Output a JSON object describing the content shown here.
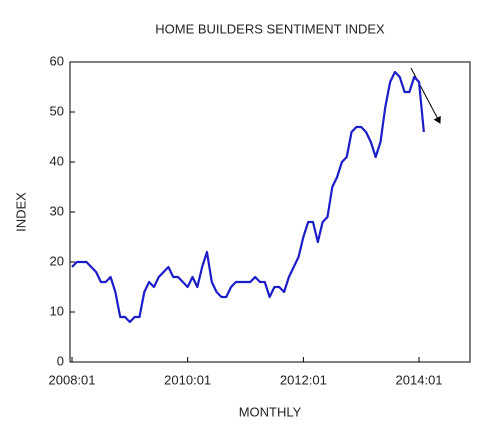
{
  "chart_data": {
    "type": "line",
    "title": "HOME BUILDERS SENTIMENT INDEX",
    "y_label": "INDEX",
    "x_label": "MONTHLY",
    "categories": [
      "2008:01",
      null,
      null,
      null,
      null,
      null,
      null,
      null,
      null,
      null,
      null,
      null,
      null,
      null,
      null,
      null,
      null,
      null,
      null,
      null,
      null,
      null,
      null,
      null,
      "2010:01",
      null,
      null,
      null,
      null,
      null,
      null,
      null,
      null,
      null,
      null,
      null,
      null,
      null,
      null,
      null,
      null,
      null,
      null,
      null,
      null,
      null,
      null,
      null,
      "2012:01",
      null,
      null,
      null,
      null,
      null,
      null,
      null,
      null,
      null,
      null,
      null,
      null,
      null,
      null,
      null,
      null,
      null,
      null,
      null,
      null,
      null,
      null,
      null,
      "2014:01",
      null
    ],
    "values": [
      19,
      20,
      20,
      20,
      19,
      18,
      16,
      16,
      17,
      14,
      9,
      9,
      8,
      9,
      9,
      14,
      16,
      15,
      17,
      18,
      19,
      17,
      17,
      16,
      15,
      17,
      15,
      19,
      22,
      16,
      14,
      13,
      13,
      15,
      16,
      16,
      16,
      16,
      17,
      16,
      16,
      13,
      15,
      15,
      14,
      17,
      19,
      21,
      25,
      28,
      28,
      24,
      28,
      29,
      35,
      37,
      40,
      41,
      46,
      47,
      47,
      46,
      44,
      41,
      44,
      51,
      56,
      58,
      57,
      54,
      54,
      57,
      56,
      46
    ],
    "color": "#1c1cc8",
    "ylim": [
      0,
      60
    ],
    "yticks": [
      0,
      10,
      20,
      30,
      40,
      50,
      60
    ],
    "grid": false
  }
}
